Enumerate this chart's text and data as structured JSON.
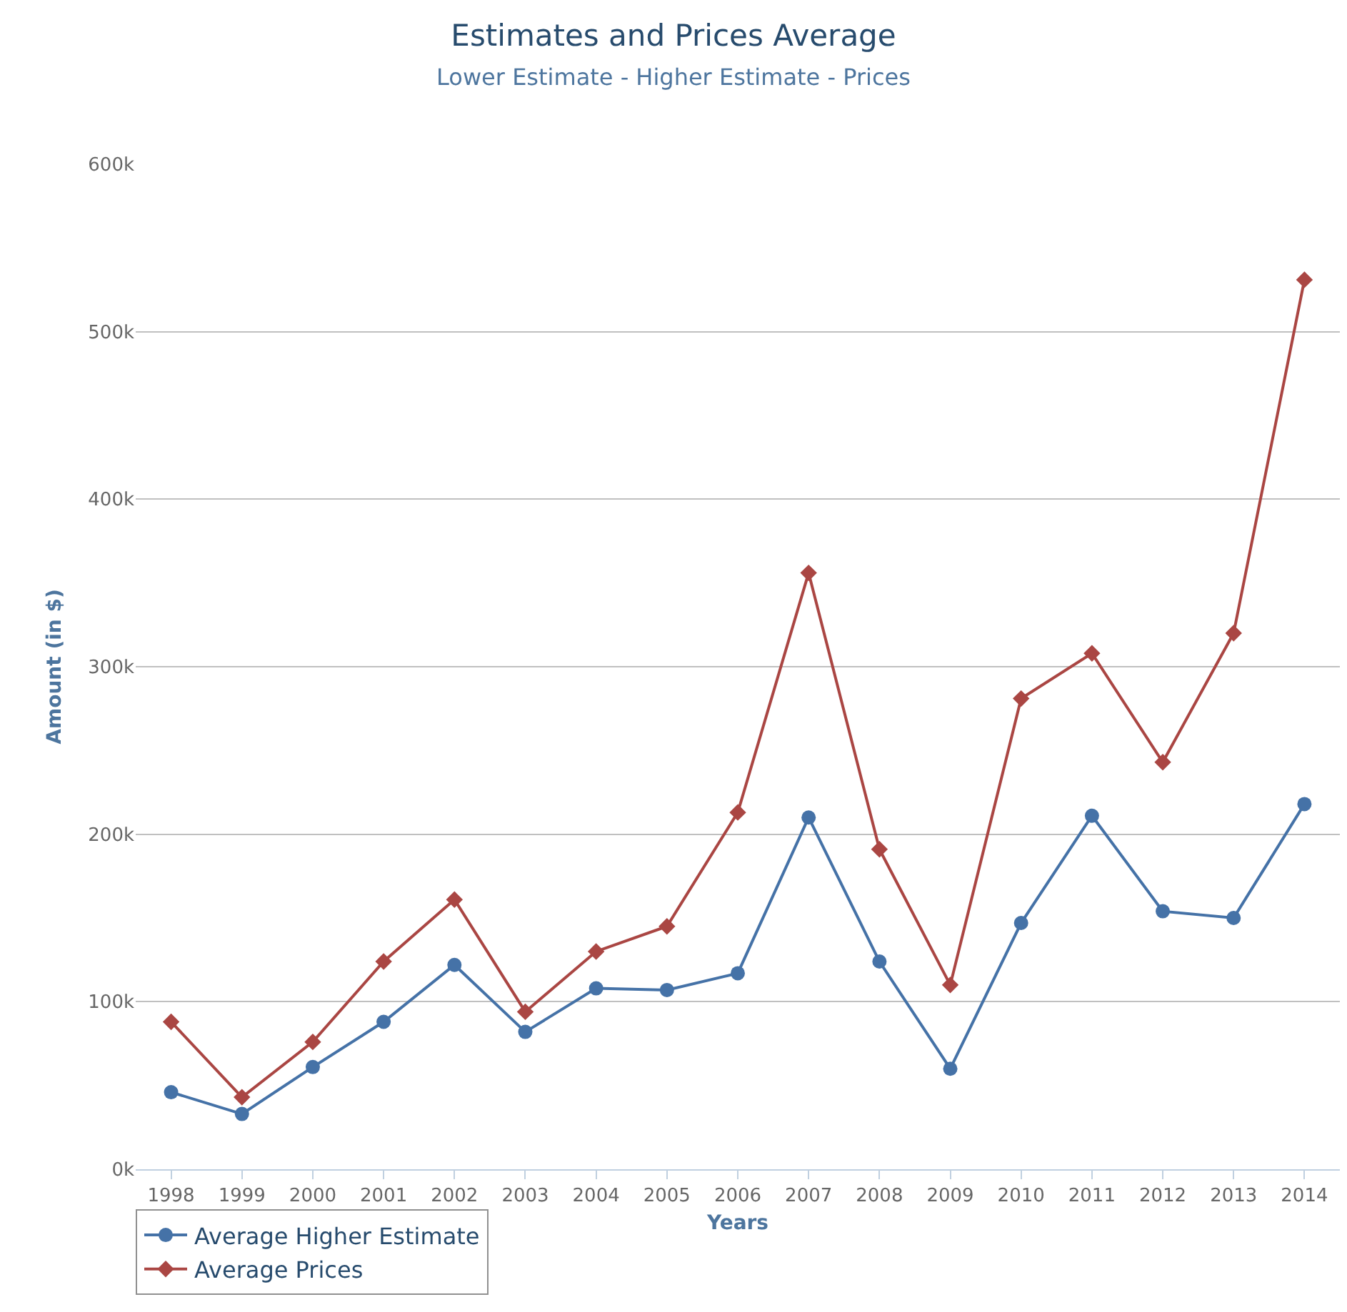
{
  "chart_data": {
    "type": "line",
    "title": "Estimates and Prices Average",
    "subtitle": "Lower Estimate - Higher Estimate - Prices",
    "xlabel": "Years",
    "ylabel": "Amount (in $)",
    "categories": [
      "1998",
      "1999",
      "2000",
      "2001",
      "2002",
      "2003",
      "2004",
      "2005",
      "2006",
      "2007",
      "2008",
      "2009",
      "2010",
      "2011",
      "2012",
      "2013",
      "2014"
    ],
    "series": [
      {
        "name": "Average Higher Estimate",
        "color": "#4572a7",
        "marker": "circle",
        "values": [
          46000,
          33000,
          61000,
          88000,
          122000,
          82000,
          108000,
          107000,
          117000,
          210000,
          124000,
          60000,
          147000,
          211000,
          154000,
          150000,
          218000
        ]
      },
      {
        "name": "Average Prices",
        "color": "#aa4643",
        "marker": "diamond",
        "values": [
          88000,
          43000,
          76000,
          124000,
          161000,
          94000,
          130000,
          145000,
          213000,
          356000,
          191000,
          110000,
          281000,
          308000,
          243000,
          320000,
          531000
        ]
      }
    ],
    "ylim": [
      0,
      600000
    ],
    "yticks": [
      {
        "value": 0,
        "label": "0k"
      },
      {
        "value": 100000,
        "label": "100k"
      },
      {
        "value": 200000,
        "label": "200k"
      },
      {
        "value": 300000,
        "label": "300k"
      },
      {
        "value": 400000,
        "label": "400k"
      },
      {
        "value": 500000,
        "label": "500k"
      },
      {
        "value": 600000,
        "label": "600k"
      }
    ],
    "grid": "y",
    "legend": "bottom left",
    "line_style": "solid"
  }
}
